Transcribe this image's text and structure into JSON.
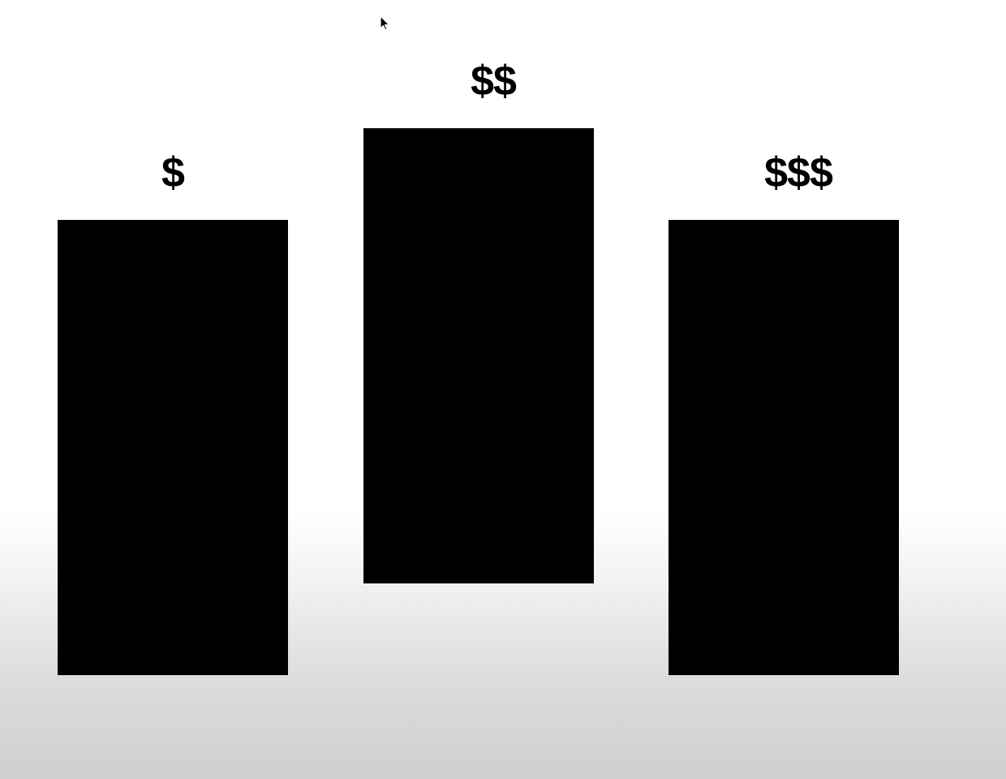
{
  "cursor": {
    "icon": "mouse-pointer-icon"
  },
  "tiers": [
    {
      "label": "$",
      "color": "#000000"
    },
    {
      "label": "$$",
      "color": "#000000"
    },
    {
      "label": "$$$",
      "color": "#000000"
    }
  ],
  "background": {
    "top_color": "#ffffff",
    "bottom_color": "#cfcfcf"
  }
}
